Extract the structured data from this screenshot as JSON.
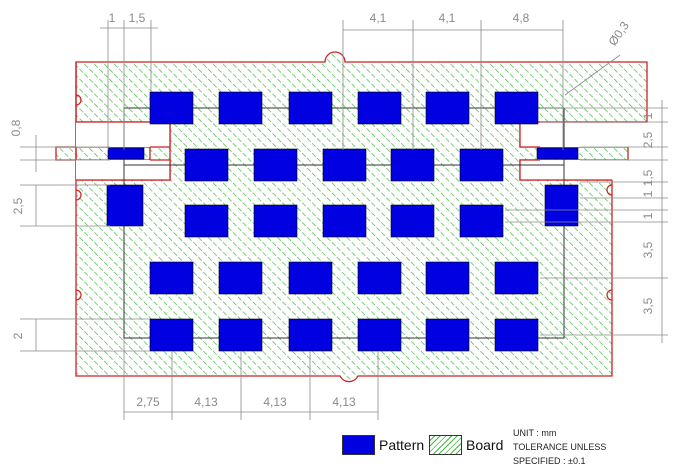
{
  "dimensions": {
    "top": [
      "1",
      "1,5",
      "4,1",
      "4,1",
      "4,8"
    ],
    "hole": "Ø0,3",
    "left": [
      "0,8",
      "2,5",
      "2"
    ],
    "right": [
      "1",
      "2,5",
      "1,5",
      "1",
      "1",
      "3,5",
      "3,5"
    ],
    "bottom": [
      "2,75",
      "4,13",
      "4,13",
      "4,13"
    ]
  },
  "legend": {
    "pattern_label": "Pattern",
    "board_label": "Board",
    "pattern_color": "#0000e0",
    "board_color": "#44b844"
  },
  "notes": {
    "unit": "UNIT : mm",
    "tolerance": "TOLERANCE UNLESS",
    "specified": "SPECIFIED : ±0.1"
  },
  "colors": {
    "outline": "#cc2222",
    "pattern": "#0000e0",
    "hatch": "#44b844",
    "dimension": "#8a8a8a"
  }
}
